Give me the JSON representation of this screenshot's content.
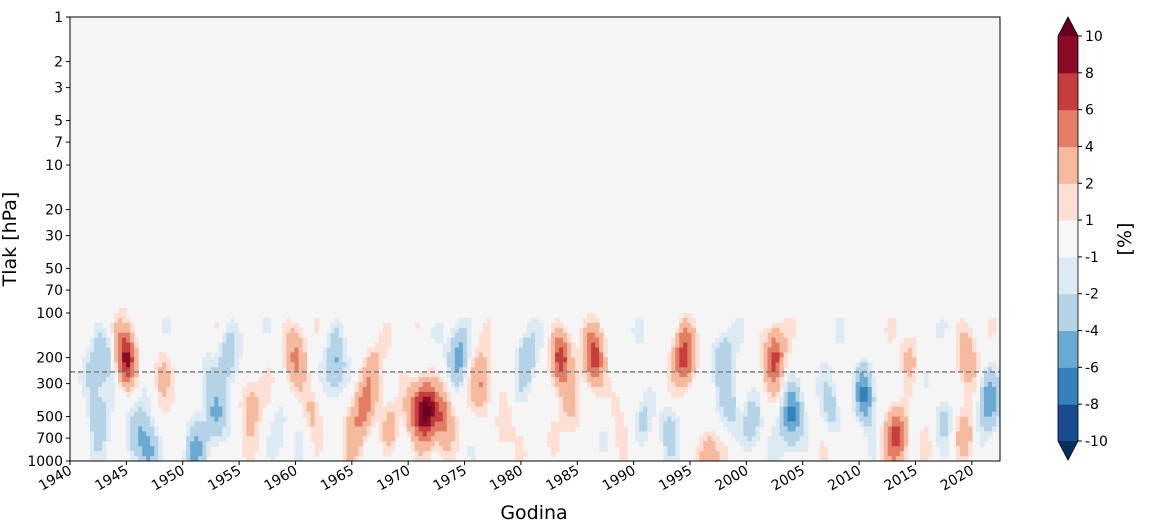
{
  "chart_data": {
    "type": "heatmap",
    "subtype": "filled-contour",
    "xlabel": "Godina",
    "ylabel": "Tlak [hPa]",
    "colorbar_label": "[%]",
    "x_ticks": [
      "1940",
      "1945",
      "1950",
      "1955",
      "1960",
      "1965",
      "1970",
      "1975",
      "1980",
      "1985",
      "1990",
      "1995",
      "2000",
      "2005",
      "2010",
      "2015",
      "2020"
    ],
    "xlim": [
      1940,
      2022.5
    ],
    "y_scale": "log",
    "y_inverted": true,
    "ylim": [
      1000,
      1
    ],
    "y_ticks": [
      "1",
      "2",
      "3",
      "5",
      "7",
      "10",
      "20",
      "30",
      "50",
      "70",
      "100",
      "200",
      "300",
      "500",
      "700",
      "1000"
    ],
    "colorbar_levels": [
      "-10",
      "-8",
      "-6",
      "-4",
      "-2",
      "-1",
      "1",
      "2",
      "4",
      "6",
      "8",
      "10"
    ],
    "colorbar_colors": [
      "#053061",
      "#1a4d8f",
      "#3580bd",
      "#6aaad2",
      "#b4d3e7",
      "#dcebf3",
      "#f7f7f7",
      "#fde0d3",
      "#f5b99d",
      "#e37d63",
      "#c53e3d",
      "#8a0b25",
      "#67001f"
    ],
    "reference_line_hpa": 250,
    "background_color": "#f5f5f5",
    "anomalies": [
      {
        "year": 1941.8,
        "p": 250,
        "v": -2.5
      },
      {
        "year": 1942.5,
        "p": 500,
        "v": -3
      },
      {
        "year": 1942.9,
        "p": 200,
        "v": -4
      },
      {
        "year": 1945.0,
        "p": 200,
        "v": 9
      },
      {
        "year": 1945.0,
        "p": 70,
        "v": 1.5
      },
      {
        "year": 1946.0,
        "p": 600,
        "v": -3
      },
      {
        "year": 1947.0,
        "p": 850,
        "v": -6
      },
      {
        "year": 1948.0,
        "p": 250,
        "v": 2
      },
      {
        "year": 1951.0,
        "p": 850,
        "v": -4
      },
      {
        "year": 1952.0,
        "p": 250,
        "v": -2
      },
      {
        "year": 1953.0,
        "p": 500,
        "v": -4
      },
      {
        "year": 1954.0,
        "p": 200,
        "v": -3
      },
      {
        "year": 1956.0,
        "p": 400,
        "v": 3
      },
      {
        "year": 1958.5,
        "p": 600,
        "v": -2
      },
      {
        "year": 1960.0,
        "p": 200,
        "v": 4
      },
      {
        "year": 1961.5,
        "p": 450,
        "v": 3
      },
      {
        "year": 1963.5,
        "p": 230,
        "v": -4
      },
      {
        "year": 1965.0,
        "p": 700,
        "v": 2
      },
      {
        "year": 1966.0,
        "p": 450,
        "v": 4
      },
      {
        "year": 1967.0,
        "p": 250,
        "v": 2.5
      },
      {
        "year": 1968.5,
        "p": 600,
        "v": 3
      },
      {
        "year": 1970.5,
        "p": 450,
        "v": 5
      },
      {
        "year": 1971.6,
        "p": 450,
        "v": 10
      },
      {
        "year": 1973.0,
        "p": 500,
        "v": 5
      },
      {
        "year": 1974.5,
        "p": 200,
        "v": -5
      },
      {
        "year": 1976.5,
        "p": 300,
        "v": 4
      },
      {
        "year": 1978.5,
        "p": 600,
        "v": 3
      },
      {
        "year": 1980.5,
        "p": 200,
        "v": -3
      },
      {
        "year": 1983.5,
        "p": 200,
        "v": 7
      },
      {
        "year": 1984.5,
        "p": 500,
        "v": 2
      },
      {
        "year": 1986.5,
        "p": 200,
        "v": 7
      },
      {
        "year": 1988.5,
        "p": 400,
        "v": 2
      },
      {
        "year": 1991.0,
        "p": 500,
        "v": -3
      },
      {
        "year": 1993.0,
        "p": 600,
        "v": -2.5
      },
      {
        "year": 1994.5,
        "p": 200,
        "v": 7
      },
      {
        "year": 1996.5,
        "p": 900,
        "v": 4
      },
      {
        "year": 1998.0,
        "p": 200,
        "v": -3
      },
      {
        "year": 1998.5,
        "p": 450,
        "v": -3
      },
      {
        "year": 2000.5,
        "p": 550,
        "v": -4
      },
      {
        "year": 2002.5,
        "p": 200,
        "v": 6
      },
      {
        "year": 2004.0,
        "p": 500,
        "v": -6
      },
      {
        "year": 2007.5,
        "p": 450,
        "v": -3
      },
      {
        "year": 2010.5,
        "p": 350,
        "v": -7
      },
      {
        "year": 2012.5,
        "p": 750,
        "v": 3
      },
      {
        "year": 2013.5,
        "p": 650,
        "v": 6
      },
      {
        "year": 2014.5,
        "p": 200,
        "v": 3
      },
      {
        "year": 2017.5,
        "p": 500,
        "v": -3
      },
      {
        "year": 2019.5,
        "p": 200,
        "v": 3
      },
      {
        "year": 2019.5,
        "p": 700,
        "v": 3.5
      },
      {
        "year": 2021.5,
        "p": 400,
        "v": -5
      }
    ]
  }
}
